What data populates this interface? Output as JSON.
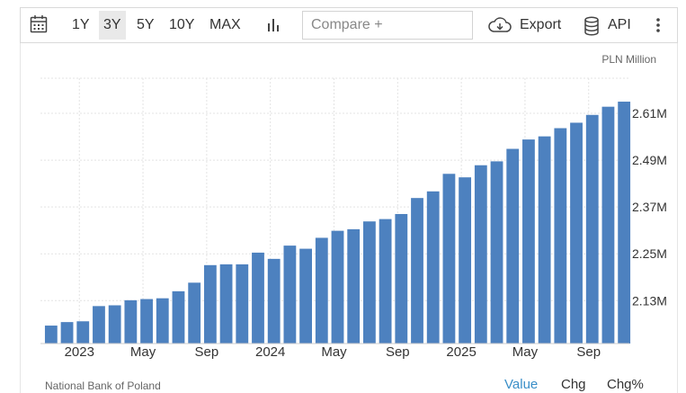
{
  "toolbar": {
    "ranges": [
      "1Y",
      "3Y",
      "5Y",
      "10Y",
      "MAX"
    ],
    "active_range": "3Y",
    "compare_placeholder": "Compare +",
    "export_label": "Export",
    "api_label": "API"
  },
  "unit_label": "PLN Million",
  "source": "National Bank of Poland",
  "footer_tabs": [
    "Value",
    "Chg",
    "Chg%"
  ],
  "active_footer_tab": "Value",
  "colors": {
    "bar": "#4d81bf",
    "accent": "#3a8fc8",
    "grid": "#e3e3e3"
  },
  "chart_data": {
    "type": "bar",
    "x_tick_labels": [
      "2023",
      "May",
      "Sep",
      "2024",
      "May",
      "Sep",
      "2025",
      "May",
      "Sep"
    ],
    "y_tick_labels": [
      "2.13M",
      "2.25M",
      "2.37M",
      "2.49M",
      "2.61M"
    ],
    "y_ticks": [
      2.13,
      2.25,
      2.37,
      2.49,
      2.61
    ],
    "ylim": [
      2.02,
      2.7
    ],
    "categories": [
      "2022-11",
      "2022-12",
      "2023-01",
      "2023-02",
      "2023-03",
      "2023-04",
      "2023-05",
      "2023-06",
      "2023-07",
      "2023-08",
      "2023-09",
      "2023-10",
      "2023-11",
      "2023-12",
      "2024-01",
      "2024-02",
      "2024-03",
      "2024-04",
      "2024-05",
      "2024-06",
      "2024-07",
      "2024-08",
      "2024-09",
      "2024-10",
      "2024-11",
      "2024-12",
      "2025-01",
      "2025-02",
      "2025-03",
      "2025-04",
      "2025-05",
      "2025-06",
      "2025-07",
      "2025-08",
      "2025-09",
      "2025-10",
      "2025-11"
    ],
    "values": [
      2.066,
      2.075,
      2.077,
      2.116,
      2.118,
      2.131,
      2.134,
      2.136,
      2.154,
      2.176,
      2.221,
      2.223,
      2.223,
      2.253,
      2.237,
      2.271,
      2.263,
      2.291,
      2.309,
      2.313,
      2.333,
      2.339,
      2.352,
      2.393,
      2.41,
      2.455,
      2.446,
      2.477,
      2.487,
      2.519,
      2.543,
      2.551,
      2.572,
      2.586,
      2.606,
      2.627,
      2.64
    ],
    "grid": true,
    "ylabel": "PLN Million"
  }
}
